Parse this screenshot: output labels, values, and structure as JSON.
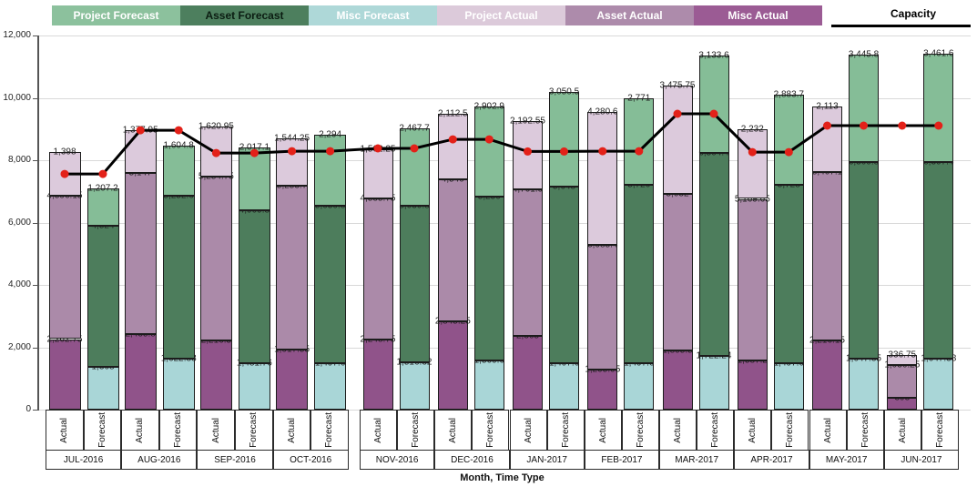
{
  "legend": {
    "items": [
      {
        "label": "Project Forecast",
        "color": "#8cc19d",
        "text_color": "#ffffff"
      },
      {
        "label": "Asset Forecast",
        "color": "#4d7f5e",
        "text_color": "#0b1d12"
      },
      {
        "label": "Misc Forecast",
        "color": "#aed8d8",
        "text_color": "#ffffff"
      },
      {
        "label": "Project Actual",
        "color": "#dccada",
        "text_color": "#ffffff"
      },
      {
        "label": "Asset Actual",
        "color": "#ad8bab",
        "text_color": "#ffffff"
      },
      {
        "label": "Misc Actual",
        "color": "#9b5b94",
        "text_color": "#ffffff"
      }
    ],
    "capacity": {
      "label": "Capacity",
      "line_color": "#000000"
    }
  },
  "y_axis": {
    "ticks": [
      "12,000",
      "10,000",
      "8,000",
      "6,000",
      "4,000",
      "2,000",
      "0"
    ]
  },
  "x_axis": {
    "title": "Month, Time Type",
    "bar_labels": [
      "Actual",
      "Forecast"
    ]
  },
  "chart_data": {
    "type": "bar",
    "stacked": true,
    "ylim": [
      0,
      12000
    ],
    "grid": true,
    "legend_position": "top",
    "categories": [
      "JUL-2016",
      "AUG-2016",
      "SEP-2016",
      "OCT-2016",
      "NOV-2016",
      "DEC-2016",
      "JAN-2017",
      "FEB-2017",
      "MAR-2017",
      "APR-2017",
      "MAY-2017",
      "JUN-2017"
    ],
    "series": [
      {
        "name": "Misc Actual",
        "bar": "Actual",
        "color": "#90538a",
        "values": [
          "2,262.75",
          "2,435.8",
          "2,216.5",
          "1,917.55",
          "2,248.75",
          "2,845.25",
          "2,365",
          "1,295.95",
          "1,895.5",
          "1,587.2",
          "2,216.15",
          "393"
        ]
      },
      {
        "name": "Asset Actual",
        "bar": "Actual",
        "color": "#ab8aa9",
        "values": [
          "4,596.15",
          "5,147",
          "5,254.75",
          "5,253.7",
          "4,535.75",
          "4,540",
          "4,701.9",
          "3,985.4",
          "5,032",
          "5,169.65",
          "5,407.1",
          "1,036.25"
        ]
      },
      {
        "name": "Project Actual",
        "bar": "Actual",
        "color": "#dccadc",
        "values": [
          "1,398",
          "1,377.95",
          "1,620.95",
          "1,544.25",
          "1,562.25",
          "2,112.5",
          "2,192.55",
          "4,280.6",
          "3,475.75",
          "2,232",
          "2,113",
          "336.75"
        ]
      },
      {
        "name": "Misc Forecast",
        "bar": "Forecast",
        "color": "#a9d6d7",
        "values": [
          "1,368",
          "1,622.88",
          "1,481.76",
          "1,497.6",
          "1,516.32",
          "1,569.6",
          "1,497.6",
          "1,497.6",
          "1,722.24",
          "1,497.6",
          "1,647.35",
          "1,647.38"
        ]
      },
      {
        "name": "Asset Forecast",
        "bar": "Forecast",
        "color": "#4d7d5c",
        "values": [
          "4,524",
          "5,252.6",
          "4,909.8",
          "5,030.8",
          "5,030.8",
          "5,250",
          "5,648",
          "5,720",
          "6,504.4",
          "5,728",
          "6,300.8",
          "6,307.4"
        ]
      },
      {
        "name": "Project Forecast",
        "bar": "Forecast",
        "color": "#85bd97",
        "values": [
          "1,207.2",
          "1,604.8",
          "2,017.1",
          "2,294",
          "2,467.7",
          "2,902.9",
          "3,050.5",
          "2,771",
          "3,133.6",
          "2,883.7",
          "3,445.8",
          "3,461.6"
        ]
      }
    ],
    "capacity_line": {
      "name": "Capacity",
      "color": "#000000",
      "marker_color": "#e32119",
      "values_per_month": [
        7560,
        8960,
        8230,
        8290,
        8380,
        8670,
        8280,
        8290,
        9490,
        8260,
        9110,
        9110
      ]
    }
  }
}
